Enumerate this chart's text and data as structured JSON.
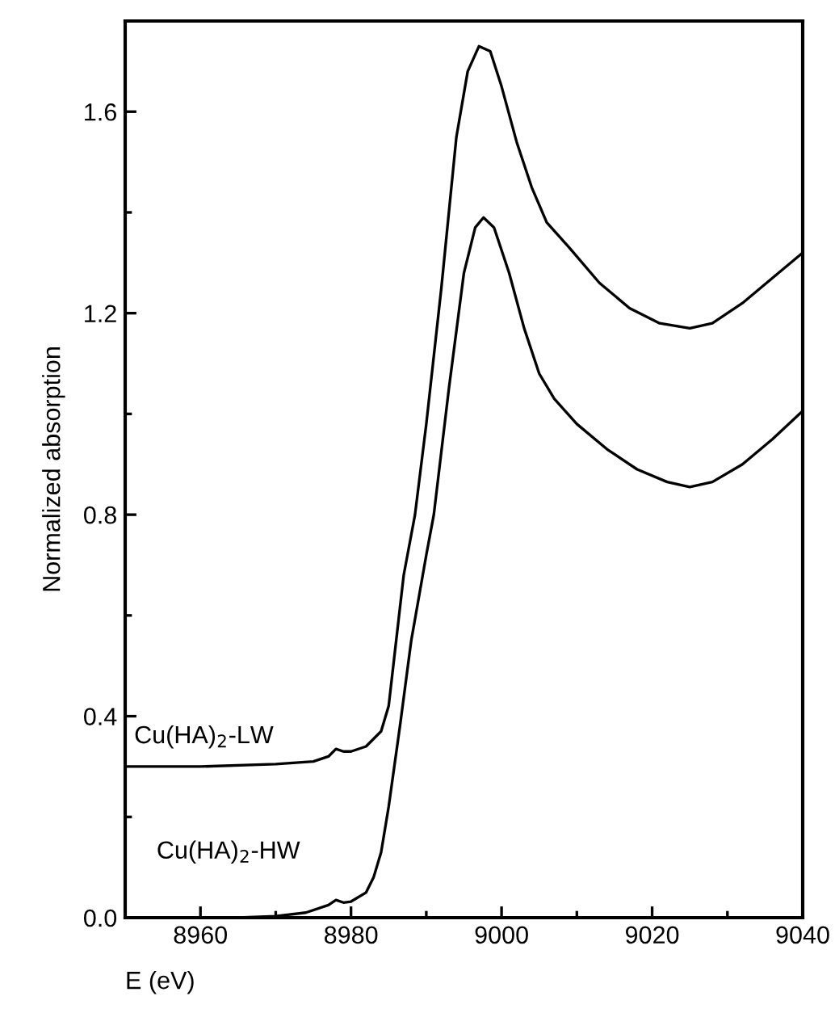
{
  "chart_data": {
    "type": "line",
    "xlabel": "E (eV)",
    "ylabel": "Normalized absorption",
    "xlim": [
      8950,
      9040
    ],
    "ylim": [
      0,
      1.78
    ],
    "xticks": [
      {
        "value": 8960,
        "label": "8960"
      },
      {
        "value": 8970,
        "label": null
      },
      {
        "value": 8980,
        "label": "8980"
      },
      {
        "value": 8990,
        "label": null
      },
      {
        "value": 9000,
        "label": "9000"
      },
      {
        "value": 9010,
        "label": null
      },
      {
        "value": 9020,
        "label": "9020"
      },
      {
        "value": 9030,
        "label": null
      },
      {
        "value": 9040,
        "label": "9040"
      }
    ],
    "yticks": [
      {
        "value": 0,
        "label": "0.0"
      },
      {
        "value": 0.2,
        "label": null
      },
      {
        "value": 0.4,
        "label": "0.4"
      },
      {
        "value": 0.6,
        "label": null
      },
      {
        "value": 0.8,
        "label": "0.8"
      },
      {
        "value": 1.0,
        "label": null
      },
      {
        "value": 1.2,
        "label": "1.2"
      },
      {
        "value": 1.4,
        "label": null
      },
      {
        "value": 1.6,
        "label": "1.6"
      }
    ],
    "grid": false,
    "legend": false,
    "line_style": "solid",
    "marker": "none",
    "series": [
      {
        "name": "Cu(HA)$_{2}$-LW",
        "color": "#000000",
        "x": [
          8950,
          8960,
          8970,
          8975,
          8977,
          8978,
          8979,
          8980,
          8982,
          8984,
          8985,
          8986,
          8987,
          8988.5,
          8990,
          8992,
          8994,
          8995.5,
          8997,
          8998.5,
          9000,
          9002,
          9004,
          9006,
          9009,
          9013,
          9017,
          9021,
          9025,
          9028,
          9032,
          9036,
          9040
        ],
        "values": [
          0.3,
          0.3,
          0.305,
          0.31,
          0.32,
          0.335,
          0.33,
          0.33,
          0.34,
          0.37,
          0.42,
          0.55,
          0.68,
          0.8,
          0.98,
          1.25,
          1.55,
          1.68,
          1.73,
          1.72,
          1.65,
          1.54,
          1.45,
          1.38,
          1.33,
          1.26,
          1.21,
          1.18,
          1.17,
          1.18,
          1.22,
          1.27,
          1.32
        ]
      },
      {
        "name": "Cu(HA)$_{2}$-HW",
        "color": "#000000",
        "x": [
          8950,
          8965,
          8970,
          8974,
          8977,
          8978,
          8979,
          8980,
          8982,
          8983,
          8984,
          8985,
          8986.5,
          8988,
          8990,
          8991,
          8993,
          8995,
          8996.5,
          8997.6,
          8999,
          9001,
          9003,
          9005,
          9007,
          9010,
          9014,
          9018,
          9022,
          9025,
          9028,
          9032,
          9036,
          9040
        ],
        "values": [
          0,
          0,
          0.003,
          0.01,
          0.025,
          0.035,
          0.03,
          0.032,
          0.05,
          0.08,
          0.13,
          0.22,
          0.38,
          0.55,
          0.72,
          0.8,
          1.05,
          1.28,
          1.37,
          1.39,
          1.37,
          1.28,
          1.17,
          1.08,
          1.03,
          0.98,
          0.93,
          0.89,
          0.865,
          0.855,
          0.865,
          0.9,
          0.95,
          1.006
        ]
      }
    ]
  }
}
